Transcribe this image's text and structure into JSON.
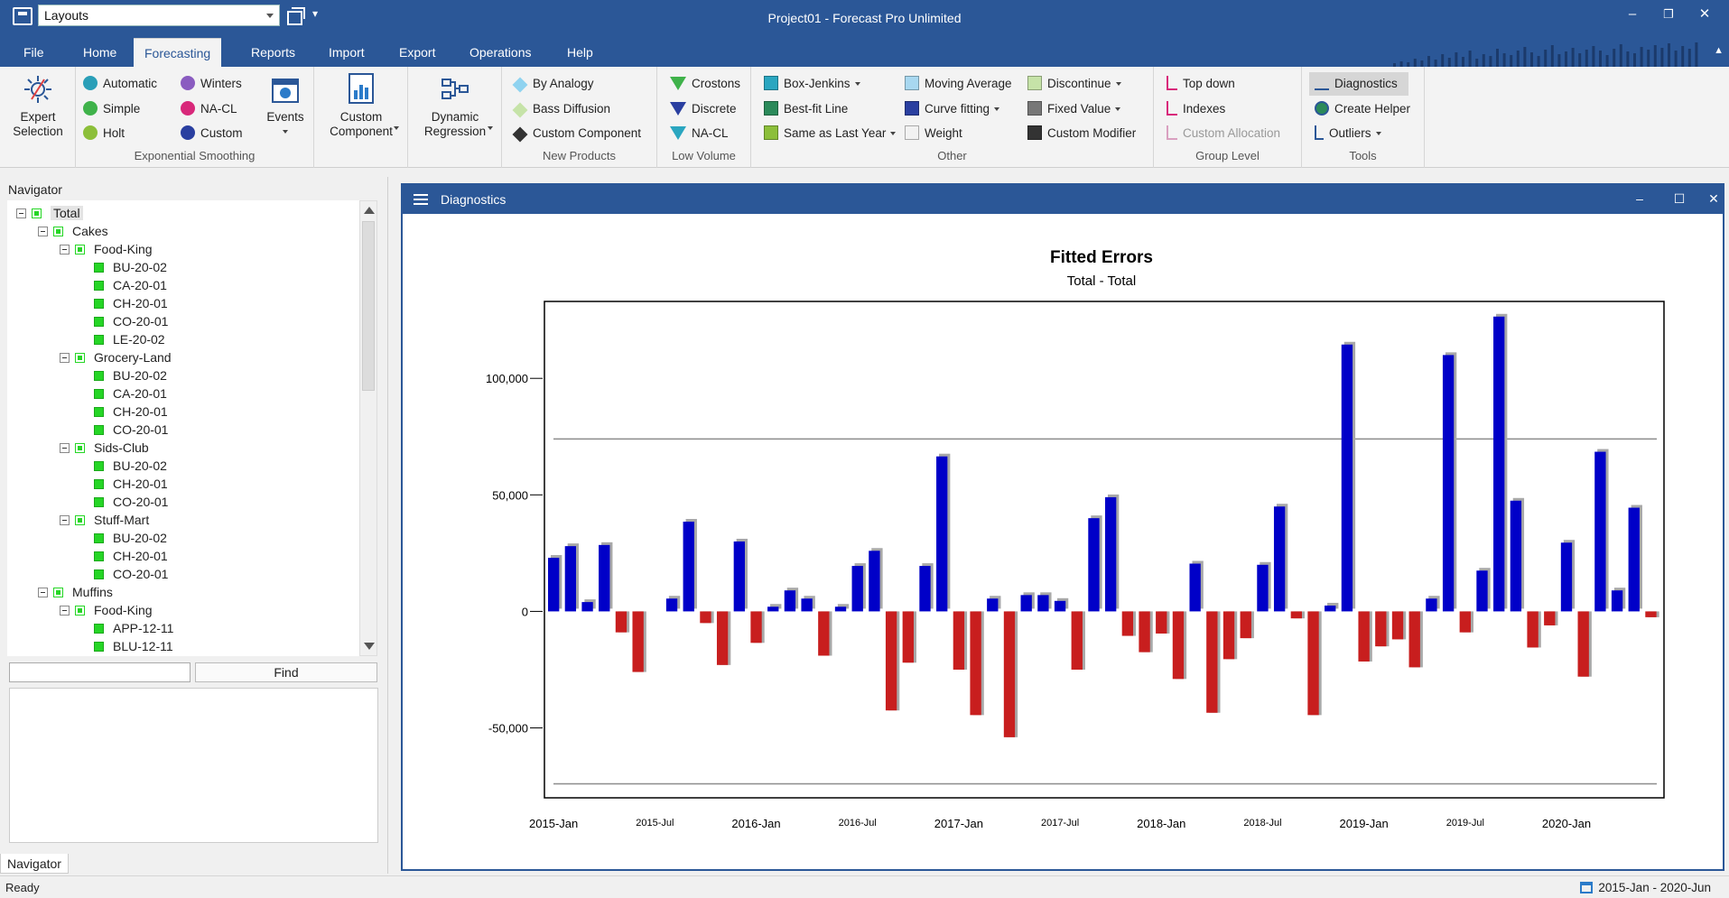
{
  "title_bar": {
    "layouts_value": "Layouts",
    "window_title": "Project01 - Forecast Pro Unlimited",
    "minimize": "–",
    "restore": "❐",
    "close": "✕"
  },
  "tabs": [
    "File",
    "Home",
    "Forecasting",
    "Reports",
    "Import",
    "Export",
    "Operations",
    "Help"
  ],
  "active_tab": "Forecasting",
  "ribbon": {
    "expert_selection": "Expert Selection",
    "exp_smoothing": {
      "label": "Exponential Smoothing",
      "items": [
        "Automatic",
        "Simple",
        "Holt",
        "Winters",
        "NA-CL",
        "Custom"
      ],
      "events": "Events"
    },
    "custom_component": "Custom Component",
    "dynamic_regression": "Dynamic Regression",
    "new_products": {
      "label": "New Products",
      "items": [
        "By Analogy",
        "Bass Diffusion",
        "Custom Component"
      ]
    },
    "low_volume": {
      "label": "Low Volume",
      "items": [
        "Crostons",
        "Discrete",
        "NA-CL"
      ]
    },
    "other": {
      "label": "Other",
      "items": [
        "Box-Jenkins",
        "Best-fit Line",
        "Same as Last Year",
        "Moving Average",
        "Curve fitting",
        "Weight",
        "Discontinue",
        "Fixed Value",
        "Custom Modifier"
      ]
    },
    "group_level": {
      "label": "Group Level",
      "items": [
        "Top down",
        "Indexes",
        "Custom Allocation"
      ]
    },
    "tools": {
      "label": "Tools",
      "items": [
        "Diagnostics",
        "Create Helper",
        "Outliers"
      ]
    }
  },
  "navigator": {
    "title": "Navigator",
    "tree": [
      {
        "label": "Total",
        "level": 0,
        "type": "group"
      },
      {
        "label": "Cakes",
        "level": 1,
        "type": "group"
      },
      {
        "label": "Food-King",
        "level": 2,
        "type": "group"
      },
      {
        "label": "BU-20-02",
        "level": 3,
        "type": "leaf"
      },
      {
        "label": "CA-20-01",
        "level": 3,
        "type": "leaf"
      },
      {
        "label": "CH-20-01",
        "level": 3,
        "type": "leaf"
      },
      {
        "label": "CO-20-01",
        "level": 3,
        "type": "leaf"
      },
      {
        "label": "LE-20-02",
        "level": 3,
        "type": "leaf"
      },
      {
        "label": "Grocery-Land",
        "level": 2,
        "type": "group"
      },
      {
        "label": "BU-20-02",
        "level": 3,
        "type": "leaf"
      },
      {
        "label": "CA-20-01",
        "level": 3,
        "type": "leaf"
      },
      {
        "label": "CH-20-01",
        "level": 3,
        "type": "leaf"
      },
      {
        "label": "CO-20-01",
        "level": 3,
        "type": "leaf"
      },
      {
        "label": "Sids-Club",
        "level": 2,
        "type": "group"
      },
      {
        "label": "BU-20-02",
        "level": 3,
        "type": "leaf"
      },
      {
        "label": "CH-20-01",
        "level": 3,
        "type": "leaf"
      },
      {
        "label": "CO-20-01",
        "level": 3,
        "type": "leaf"
      },
      {
        "label": "Stuff-Mart",
        "level": 2,
        "type": "group"
      },
      {
        "label": "BU-20-02",
        "level": 3,
        "type": "leaf"
      },
      {
        "label": "CH-20-01",
        "level": 3,
        "type": "leaf"
      },
      {
        "label": "CO-20-01",
        "level": 3,
        "type": "leaf"
      },
      {
        "label": "Muffins",
        "level": 1,
        "type": "group"
      },
      {
        "label": "Food-King",
        "level": 2,
        "type": "group"
      },
      {
        "label": "APP-12-11",
        "level": 3,
        "type": "leaf"
      },
      {
        "label": "BLU-12-11",
        "level": 3,
        "type": "leaf"
      }
    ],
    "find_button": "Find",
    "bottom_tab": "Navigator"
  },
  "diagnostics": {
    "window_title": "Diagnostics"
  },
  "status": {
    "text": "Ready",
    "range": "2015-Jan - 2020-Jun"
  },
  "colors": {
    "positive_bar": "#0000c8",
    "negative_bar": "#c81e1e",
    "accent": "#2b5797"
  },
  "chart_data": {
    "type": "bar",
    "title": "Fitted Errors",
    "subtitle": "Total - Total",
    "y_ticks": [
      100000,
      50000,
      0,
      -50000
    ],
    "y_tick_labels": [
      "100,000",
      "50,000",
      "0",
      "-50,000"
    ],
    "ylim": [
      -80000,
      133000
    ],
    "reference_lines": [
      74000,
      -74000
    ],
    "x_tick_labels": [
      {
        "label": "2015-Jan",
        "index": 0,
        "major": true
      },
      {
        "label": "2015-Jul",
        "index": 6,
        "major": false
      },
      {
        "label": "2016-Jan",
        "index": 12,
        "major": true
      },
      {
        "label": "2016-Jul",
        "index": 18,
        "major": false
      },
      {
        "label": "2017-Jan",
        "index": 24,
        "major": true
      },
      {
        "label": "2017-Jul",
        "index": 30,
        "major": false
      },
      {
        "label": "2018-Jan",
        "index": 36,
        "major": true
      },
      {
        "label": "2018-Jul",
        "index": 42,
        "major": false
      },
      {
        "label": "2019-Jan",
        "index": 48,
        "major": true
      },
      {
        "label": "2019-Jul",
        "index": 54,
        "major": false
      },
      {
        "label": "2020-Jan",
        "index": 60,
        "major": true
      }
    ],
    "values": [
      23000,
      28000,
      4000,
      28500,
      -9000,
      -26000,
      0,
      5500,
      38500,
      -5000,
      -23000,
      30000,
      -13500,
      2000,
      9000,
      5500,
      -19000,
      2000,
      19500,
      26000,
      -42500,
      -22000,
      19500,
      66500,
      -25000,
      -44500,
      5500,
      -54000,
      7000,
      7000,
      4500,
      -25000,
      40000,
      49000,
      -10500,
      -17500,
      -9500,
      -29000,
      20500,
      -43500,
      -20500,
      -11500,
      20000,
      45000,
      -3000,
      -44500,
      2500,
      114500,
      -21500,
      -15000,
      -12000,
      -24000,
      5500,
      110000,
      -9000,
      17500,
      126500,
      47500,
      -15500,
      -6000,
      29500,
      -28000,
      68500,
      9000,
      44500,
      -2500
    ]
  }
}
